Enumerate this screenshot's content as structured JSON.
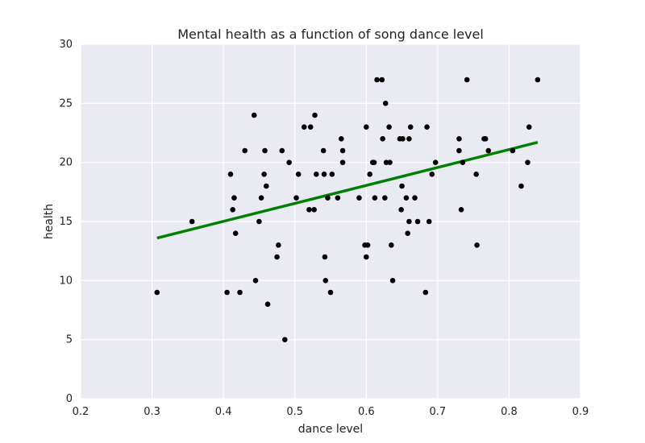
{
  "chart_data": {
    "type": "scatter",
    "title": "Mental health as a function of song dance level",
    "xlabel": "dance level",
    "ylabel": "health",
    "xlim": [
      0.2,
      0.9
    ],
    "ylim": [
      0,
      30
    ],
    "xticks": [
      "0.2",
      "0.3",
      "0.4",
      "0.5",
      "0.6",
      "0.7",
      "0.8",
      "0.9"
    ],
    "yticks": [
      "0",
      "5",
      "10",
      "15",
      "20",
      "25",
      "30"
    ],
    "grid": true,
    "legend": "none",
    "colors": {
      "background": "#eaeaf2",
      "grid": "#ffffff",
      "points": "#000000",
      "fit_line": "#008000"
    },
    "series": [
      {
        "type": "scatter",
        "points": [
          [
            0.307,
            9
          ],
          [
            0.356,
            15
          ],
          [
            0.405,
            9
          ],
          [
            0.41,
            19
          ],
          [
            0.413,
            16
          ],
          [
            0.415,
            17
          ],
          [
            0.417,
            14
          ],
          [
            0.423,
            9
          ],
          [
            0.43,
            21
          ],
          [
            0.443,
            24
          ],
          [
            0.445,
            10
          ],
          [
            0.45,
            15
          ],
          [
            0.453,
            17
          ],
          [
            0.457,
            19
          ],
          [
            0.458,
            21
          ],
          [
            0.46,
            18
          ],
          [
            0.462,
            8
          ],
          [
            0.475,
            12
          ],
          [
            0.477,
            13
          ],
          [
            0.482,
            21
          ],
          [
            0.486,
            5
          ],
          [
            0.492,
            20
          ],
          [
            0.502,
            17
          ],
          [
            0.505,
            19
          ],
          [
            0.513,
            23
          ],
          [
            0.52,
            16
          ],
          [
            0.522,
            23
          ],
          [
            0.527,
            16
          ],
          [
            0.528,
            24
          ],
          [
            0.53,
            19
          ],
          [
            0.54,
            21
          ],
          [
            0.541,
            19
          ],
          [
            0.542,
            12
          ],
          [
            0.543,
            10
          ],
          [
            0.546,
            17
          ],
          [
            0.55,
            9
          ],
          [
            0.552,
            19
          ],
          [
            0.56,
            17
          ],
          [
            0.565,
            22
          ],
          [
            0.567,
            21
          ],
          [
            0.567,
            20
          ],
          [
            0.59,
            17
          ],
          [
            0.598,
            13
          ],
          [
            0.6,
            23
          ],
          [
            0.6,
            12
          ],
          [
            0.602,
            13
          ],
          [
            0.605,
            19
          ],
          [
            0.609,
            20
          ],
          [
            0.611,
            20
          ],
          [
            0.612,
            17
          ],
          [
            0.615,
            27
          ],
          [
            0.622,
            27
          ],
          [
            0.623,
            22
          ],
          [
            0.626,
            17
          ],
          [
            0.627,
            25
          ],
          [
            0.628,
            20
          ],
          [
            0.632,
            23
          ],
          [
            0.633,
            20
          ],
          [
            0.635,
            13
          ],
          [
            0.637,
            10
          ],
          [
            0.647,
            22
          ],
          [
            0.649,
            16
          ],
          [
            0.65,
            18
          ],
          [
            0.651,
            22
          ],
          [
            0.656,
            17
          ],
          [
            0.658,
            14
          ],
          [
            0.66,
            22
          ],
          [
            0.66,
            15
          ],
          [
            0.662,
            23
          ],
          [
            0.668,
            17
          ],
          [
            0.672,
            15
          ],
          [
            0.683,
            9
          ],
          [
            0.685,
            23
          ],
          [
            0.688,
            15
          ],
          [
            0.692,
            19
          ],
          [
            0.697,
            20
          ],
          [
            0.73,
            22
          ],
          [
            0.73,
            21
          ],
          [
            0.733,
            16
          ],
          [
            0.735,
            20
          ],
          [
            0.741,
            27
          ],
          [
            0.754,
            19
          ],
          [
            0.755,
            13
          ],
          [
            0.765,
            22
          ],
          [
            0.767,
            22
          ],
          [
            0.771,
            21
          ],
          [
            0.805,
            21
          ],
          [
            0.817,
            18
          ],
          [
            0.826,
            20
          ],
          [
            0.828,
            23
          ],
          [
            0.84,
            27
          ]
        ]
      },
      {
        "type": "line",
        "points": [
          [
            0.307,
            13.6
          ],
          [
            0.84,
            21.7
          ]
        ]
      }
    ]
  }
}
